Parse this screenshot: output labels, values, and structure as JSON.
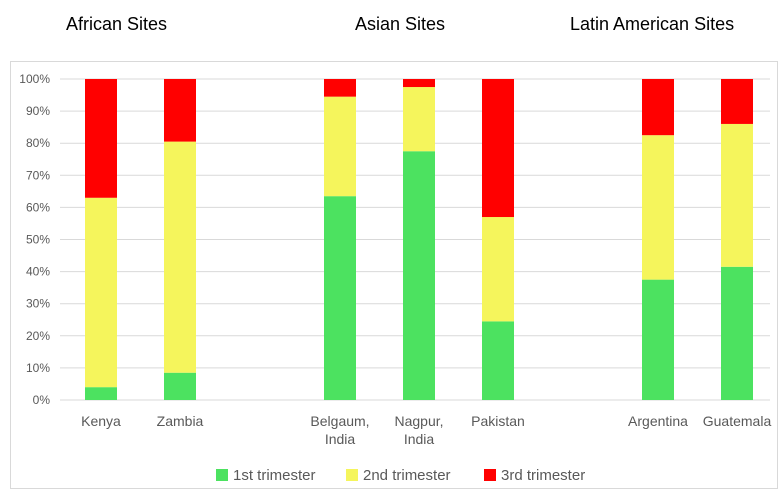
{
  "group_titles": {
    "african": "African Sites",
    "asian": "Asian Sites",
    "latin": "Latin American Sites"
  },
  "colors": {
    "series_1": "#4ce260",
    "series_2": "#f5f55c",
    "series_3": "#ff0000",
    "gridline": "#d9d9d9",
    "tick_text": "#595959"
  },
  "chart_data": {
    "type": "bar",
    "stacked": true,
    "percent_scale": true,
    "categories": [
      [
        "Kenya"
      ],
      [
        "Zambia"
      ],
      [
        "Belgaum,",
        "India"
      ],
      [
        "Nagpur,",
        "India"
      ],
      [
        "Pakistan"
      ],
      [
        "Argentina"
      ],
      [
        "Guatemala"
      ]
    ],
    "series": [
      {
        "name": "1st trimester",
        "values": [
          4,
          8.5,
          63.5,
          77.5,
          24.5,
          37.5,
          41.5
        ]
      },
      {
        "name": "2nd trimester",
        "values": [
          59,
          72,
          31,
          20,
          32.5,
          45,
          44.5
        ]
      },
      {
        "name": "3rd trimester",
        "values": [
          37,
          19.5,
          5.5,
          2.5,
          43,
          17.5,
          14
        ]
      }
    ],
    "ylim": [
      0,
      100
    ],
    "yticks": [
      "0%",
      "10%",
      "20%",
      "30%",
      "40%",
      "50%",
      "60%",
      "70%",
      "80%",
      "90%",
      "100%"
    ],
    "grid": true,
    "legend_position": "bottom"
  }
}
